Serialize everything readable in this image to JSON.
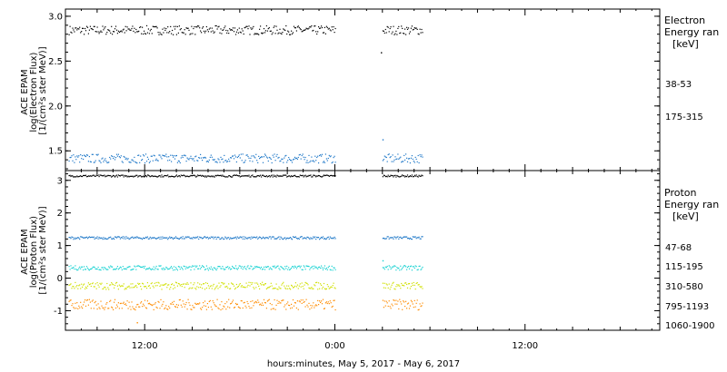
{
  "x_axis_title": "hours:minutes, May  5, 2017 - May  6, 2017",
  "x_ticks": [
    {
      "x": 12,
      "label": "12:00"
    },
    {
      "x": 24,
      "label": "0:00"
    },
    {
      "x": 36,
      "label": "12:00"
    }
  ],
  "colors": {
    "black": "#000000",
    "blue": "#1f78c8",
    "cyan": "#18d2d2",
    "yellow": "#d0e000",
    "orange": "#ff8c00",
    "axis": "#000000"
  },
  "chart_data": [
    {
      "type": "scatter",
      "panel": "electron",
      "ylabel_lines": [
        "ACE EPAM",
        "log(Electron Flux)",
        "[1/(cm²s ster MeV)]"
      ],
      "legend_title_lines": [
        "Electron",
        "Energy ran"
      ],
      "legend_unit": "[keV]",
      "xlim": [
        7,
        44.5
      ],
      "ylim": [
        1.28,
        3.08
      ],
      "yticks": [
        {
          "v": 1.5,
          "label": "1.5"
        },
        {
          "v": 2.0,
          "label": "2.0"
        },
        {
          "v": 2.5,
          "label": "2.5"
        },
        {
          "v": 3.0,
          "label": "3.0"
        }
      ],
      "segments": [
        [
          7.2,
          24.0
        ],
        [
          27.0,
          29.5
        ]
      ],
      "series": [
        {
          "name": "38-53",
          "color": "black",
          "mean": 2.85,
          "spread": 0.05,
          "extra": [
            {
              "x": 26.9,
              "y": 2.6
            }
          ]
        },
        {
          "name": "175-315",
          "color": "blue",
          "mean": 1.42,
          "spread": 0.05,
          "extra": [
            {
              "x": 27.0,
              "y": 1.63
            }
          ]
        }
      ]
    },
    {
      "type": "scatter",
      "panel": "proton",
      "ylabel_lines": [
        "ACE EPAM",
        "log(Proton Flux)",
        "[1/(cm²s ster MeV)]"
      ],
      "legend_title_lines": [
        "Proton",
        "Energy ran"
      ],
      "legend_unit": "[keV]",
      "xlim": [
        7,
        44.5
      ],
      "ylim": [
        -1.6,
        3.3
      ],
      "yticks": [
        {
          "v": -1,
          "label": "-1"
        },
        {
          "v": 0,
          "label": "0"
        },
        {
          "v": 1,
          "label": "1"
        },
        {
          "v": 2,
          "label": "2"
        },
        {
          "v": 3,
          "label": "3"
        }
      ],
      "segments": [
        [
          7.2,
          24.0
        ],
        [
          27.0,
          29.5
        ]
      ],
      "series": [
        {
          "name": "47-68",
          "color": "black",
          "mean": 3.15,
          "spread": 0.03,
          "extra": []
        },
        {
          "name": "115-195",
          "color": "blue",
          "mean": 1.25,
          "spread": 0.04,
          "extra": []
        },
        {
          "name": "310-580",
          "color": "cyan",
          "mean": 0.33,
          "spread": 0.07,
          "extra": [
            {
              "x": 27.0,
              "y": 0.55
            }
          ]
        },
        {
          "name": "795-1193",
          "color": "yellow",
          "mean": -0.22,
          "spread": 0.11,
          "extra": []
        },
        {
          "name": "1060-1900",
          "color": "orange",
          "mean": -0.8,
          "spread": 0.16,
          "extra": [
            {
              "x": 11.5,
              "y": -1.35
            }
          ]
        }
      ]
    }
  ]
}
